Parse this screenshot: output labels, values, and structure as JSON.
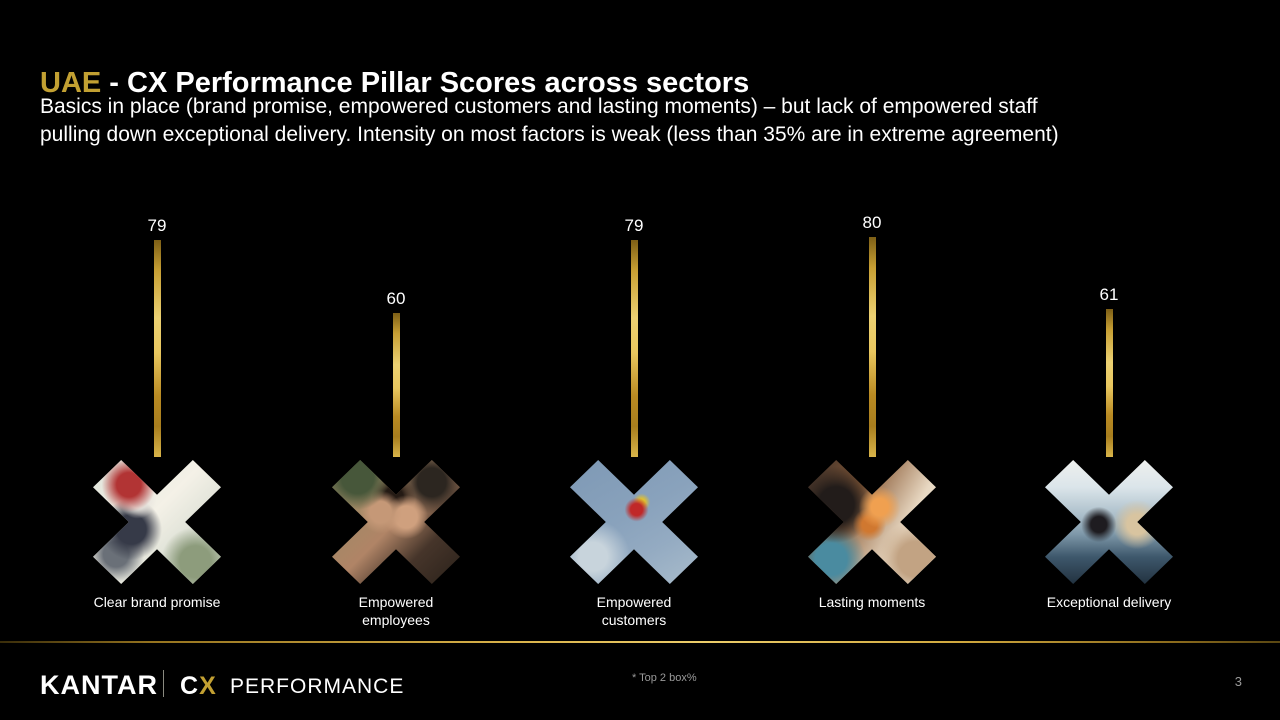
{
  "header": {
    "title_highlight": "UAE",
    "title_rest": " - CX Performance Pillar Scores across sectors",
    "subtitle_line1": "Basics in place (brand promise, empowered customers and lasting moments) – but lack of empowered staff",
    "subtitle_line2": "pulling down exceptional delivery. Intensity on most factors is weak (less than 35% are in extreme agreement)"
  },
  "chart_data": {
    "type": "bar",
    "categories": [
      "Clear brand promise",
      "Empowered\nemployees",
      "Empowered\ncustomers",
      "Lasting moments",
      "Exceptional delivery"
    ],
    "values": [
      79,
      60,
      79,
      80,
      61
    ],
    "ylim": [
      0,
      100
    ],
    "annotation": "* Top 2 box%",
    "bar_color": "#D4A93C",
    "value_label_color": "#FFFFFF",
    "legend": "none",
    "grid": "off"
  },
  "footer": {
    "brand": "KANTAR",
    "cx_c": "C",
    "cx_x": "X",
    "product": "PERFORMANCE",
    "page_number": "3"
  },
  "colors": {
    "background": "#000000",
    "accent_gold": "#C2A032",
    "text": "#FFFFFF",
    "muted_text": "#9A9A9A"
  }
}
